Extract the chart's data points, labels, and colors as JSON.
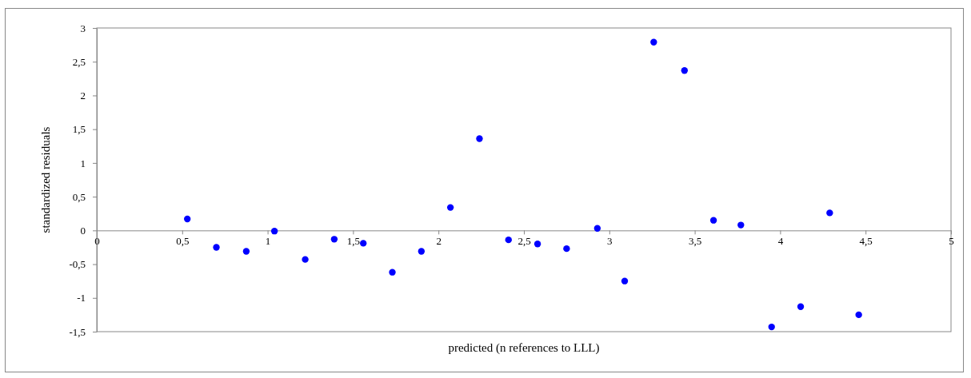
{
  "chart_data": {
    "type": "scatter",
    "xlabel": "predicted (n references to LLL)",
    "ylabel": "standardized residuals",
    "x": [
      0.53,
      0.7,
      0.875,
      1.04,
      1.22,
      1.39,
      1.56,
      1.73,
      1.9,
      2.07,
      2.24,
      2.41,
      2.58,
      2.75,
      2.93,
      3.09,
      3.26,
      3.44,
      3.61,
      3.77,
      3.95,
      4.12,
      4.29,
      4.46
    ],
    "series": [
      {
        "color": "#0000ff",
        "values": [
          0.17,
          -0.25,
          -0.31,
          -0.01,
          -0.43,
          -0.13,
          -0.19,
          -0.62,
          -0.31,
          0.34,
          1.36,
          -0.14,
          -0.2,
          -0.27,
          0.03,
          -0.75,
          2.79,
          2.37,
          0.15,
          0.08,
          -1.43,
          -1.13,
          0.26,
          -1.25
        ]
      }
    ],
    "xlim": [
      0,
      5
    ],
    "xticks": [
      0,
      {
        "value": 0.5,
        "label": "0,5"
      },
      1,
      {
        "value": 1.5,
        "label": "1,5"
      },
      2,
      {
        "value": 2.5,
        "label": "2,5"
      },
      3,
      {
        "value": 3.5,
        "label": "3,5"
      },
      4,
      {
        "value": 4.5,
        "label": "4,5"
      },
      5
    ],
    "ylim": [
      -1.5,
      3
    ],
    "yticks": [
      {
        "value": -1.5,
        "label": "-1,5"
      },
      -1,
      {
        "value": -0.5,
        "label": "-0,5"
      },
      0,
      {
        "value": 0.5,
        "label": "0,5"
      },
      1,
      {
        "value": 1.5,
        "label": "1,5"
      },
      2,
      {
        "value": 2.5,
        "label": "2,5"
      },
      3
    ],
    "marker": "circle",
    "grid": false
  }
}
